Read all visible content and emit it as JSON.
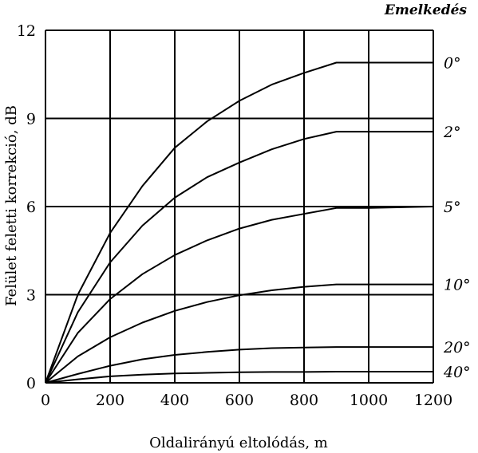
{
  "chart_data": {
    "type": "line",
    "xlabel": "Oldalirányú eltolódás, m",
    "ylabel": "Felület feletti korrekció, dB",
    "xlim": [
      0,
      1200
    ],
    "ylim": [
      0,
      12
    ],
    "x_ticks": [
      0,
      200,
      400,
      600,
      800,
      1000,
      1200
    ],
    "y_ticks": [
      0,
      3,
      6,
      9,
      12
    ],
    "grid": true,
    "legend_title": "Emelkedés",
    "legend_placement": "right",
    "series": [
      {
        "name": "0°",
        "x": [
          0,
          100,
          200,
          300,
          400,
          500,
          600,
          700,
          800,
          900,
          1000,
          1200
        ],
        "y": [
          0,
          3.0,
          5.1,
          6.7,
          8.0,
          8.9,
          9.6,
          10.15,
          10.55,
          10.9,
          10.9,
          10.9
        ]
      },
      {
        "name": "2°",
        "x": [
          0,
          100,
          200,
          300,
          400,
          500,
          600,
          700,
          800,
          900,
          1000,
          1200
        ],
        "y": [
          0,
          2.4,
          4.1,
          5.35,
          6.3,
          7.0,
          7.5,
          7.95,
          8.3,
          8.55,
          8.55,
          8.55
        ]
      },
      {
        "name": "5°",
        "x": [
          0,
          100,
          200,
          300,
          400,
          500,
          600,
          700,
          800,
          900,
          1000,
          1200
        ],
        "y": [
          0,
          1.7,
          2.85,
          3.7,
          4.35,
          4.85,
          5.25,
          5.55,
          5.75,
          5.95,
          5.95,
          6.0
        ]
      },
      {
        "name": "10°",
        "x": [
          0,
          100,
          200,
          300,
          400,
          500,
          600,
          700,
          800,
          900,
          1000,
          1200
        ],
        "y": [
          0,
          0.9,
          1.55,
          2.05,
          2.45,
          2.75,
          2.98,
          3.15,
          3.27,
          3.35,
          3.35,
          3.35
        ]
      },
      {
        "name": "20°",
        "x": [
          0,
          100,
          200,
          300,
          400,
          500,
          600,
          700,
          800,
          900,
          1000,
          1200
        ],
        "y": [
          0,
          0.3,
          0.58,
          0.8,
          0.95,
          1.05,
          1.13,
          1.18,
          1.2,
          1.22,
          1.22,
          1.22
        ]
      },
      {
        "name": "40°",
        "x": [
          0,
          100,
          200,
          300,
          400,
          500,
          600,
          700,
          800,
          900,
          1000,
          1200
        ],
        "y": [
          0,
          0.12,
          0.22,
          0.28,
          0.32,
          0.34,
          0.36,
          0.37,
          0.37,
          0.38,
          0.38,
          0.38
        ]
      }
    ]
  }
}
